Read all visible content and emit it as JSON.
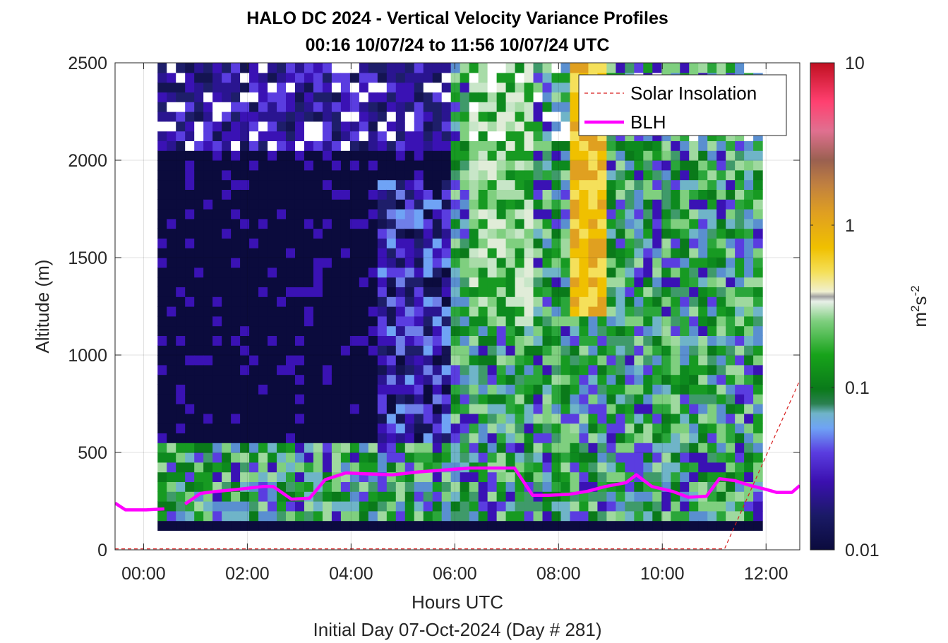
{
  "chart_data": {
    "type": "heatmap",
    "title": "HALO DC 2024 - Vertical Velocity Variance Profiles",
    "subtitle": "00:16 10/07/24 to 11:56 10/07/24  UTC",
    "xlabel": "Hours UTC",
    "xlabel2": "Initial Day 07-Oct-2024 (Day # 281)",
    "ylabel": "Altitude (m)",
    "xlim": [
      -0.55,
      12.65
    ],
    "ylim": [
      0,
      2500
    ],
    "x_ticks": [
      0,
      2,
      4,
      6,
      8,
      10,
      12
    ],
    "x_tick_labels": [
      "00:00",
      "02:00",
      "04:00",
      "06:00",
      "08:00",
      "10:00",
      "12:00"
    ],
    "y_ticks": [
      0,
      500,
      1000,
      1500,
      2000,
      2500
    ],
    "y_tick_labels": [
      "0",
      "500",
      "1000",
      "1500",
      "2000",
      "2500"
    ],
    "grid": true,
    "legend_position": "top-right",
    "colorbar": {
      "label_base": "m",
      "label_sup1": "2",
      "label_mid": "s",
      "label_sup2": "-2",
      "scale": "log",
      "range": [
        0.01,
        10
      ],
      "ticks": [
        0.01,
        0.1,
        1,
        10
      ],
      "tick_labels": [
        "0.01",
        "0.1",
        "1",
        "10"
      ]
    },
    "heatmap": {
      "x_start_hours": 0.27,
      "x_end_hours": 11.93,
      "altitude_start_m": 100,
      "altitude_end_m": 2500,
      "summary": "Weak variance (~0.01 m2s-2) dominates the nighttime layer 00:16-05:50 UTC above ~500 m; after ~06:00 UTC variance increases to 0.05-0.3 m2s-2 throughout the column, with a column of ~0.5-1 m2s-2 near 08:20-08:50 UTC between 1000 and 2500 m. Missing (white) data above ~2000 m at scattered times."
    },
    "series": [
      {
        "name": "Solar Insolation",
        "style": "dashed",
        "color": "#d81e1e",
        "x": [
          -0.55,
          11.2,
          12.65
        ],
        "y": [
          5,
          5,
          870
        ]
      },
      {
        "name": "BLH",
        "style": "solid",
        "color": "#ff00ff",
        "x": [
          -0.55,
          -0.35,
          0.05,
          0.4,
          0.55,
          0.8,
          1.1,
          1.4,
          1.8,
          2.3,
          2.5,
          2.85,
          3.2,
          3.5,
          3.9,
          4.3,
          4.8,
          5.3,
          5.8,
          6.3,
          6.8,
          7.15,
          7.5,
          7.8,
          8.2,
          8.55,
          8.9,
          9.3,
          9.5,
          9.8,
          10.2,
          10.5,
          10.85,
          11.1,
          11.4,
          11.7,
          12.0,
          12.2,
          12.5,
          12.65
        ],
        "y": [
          240,
          205,
          205,
          210,
          null,
          235,
          290,
          300,
          310,
          325,
          325,
          260,
          265,
          360,
          395,
          390,
          385,
          400,
          410,
          420,
          420,
          420,
          280,
          280,
          285,
          300,
          325,
          345,
          385,
          325,
          300,
          270,
          275,
          365,
          355,
          330,
          310,
          295,
          295,
          330
        ]
      }
    ]
  }
}
